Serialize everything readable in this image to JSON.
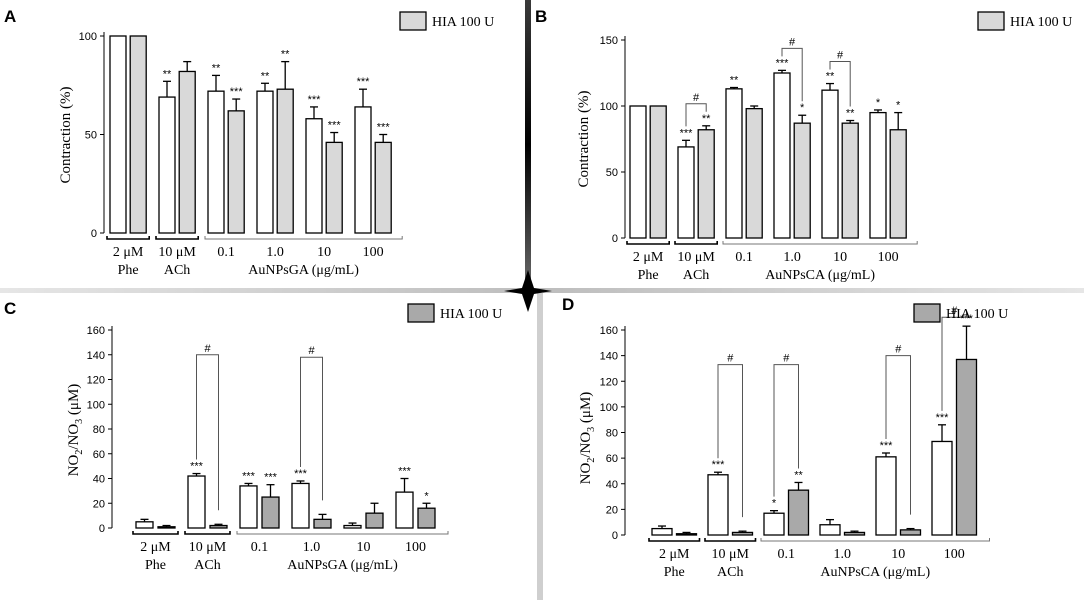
{
  "figure": {
    "divider_colors": {
      "horizontal": "#bdbdbd",
      "vertical": "#1c1c1c"
    },
    "bar_colors": {
      "control": "#ffffff",
      "hia": "#d9d9d9",
      "hia_dark": "#a9a9a9"
    }
  },
  "chart_data": [
    {
      "id": "A",
      "type": "bar",
      "letter": "A",
      "ylabel": "Contraction (%)",
      "ylim": [
        0,
        100
      ],
      "yticks": [
        0,
        50,
        100
      ],
      "legend": "HIA 100 U",
      "hia_fill": "#d9d9d9",
      "bars": [
        {
          "group": 0,
          "hia": false,
          "value": 100,
          "err": 0,
          "sig": ""
        },
        {
          "group": 0,
          "hia": true,
          "value": 100,
          "err": 0,
          "sig": ""
        },
        {
          "group": 1,
          "hia": false,
          "value": 69,
          "err": 8,
          "sig": "**"
        },
        {
          "group": 1,
          "hia": true,
          "value": 82,
          "err": 5,
          "sig": ""
        },
        {
          "group": 2,
          "hia": false,
          "value": 72,
          "err": 8,
          "sig": "**"
        },
        {
          "group": 2,
          "hia": true,
          "value": 62,
          "err": 6,
          "sig": "***"
        },
        {
          "group": 3,
          "hia": false,
          "value": 72,
          "err": 4,
          "sig": "**"
        },
        {
          "group": 3,
          "hia": true,
          "value": 73,
          "err": 14,
          "sig": "**"
        },
        {
          "group": 4,
          "hia": false,
          "value": 58,
          "err": 6,
          "sig": "***"
        },
        {
          "group": 4,
          "hia": true,
          "value": 46,
          "err": 5,
          "sig": "***"
        },
        {
          "group": 5,
          "hia": false,
          "value": 64,
          "err": 9,
          "sig": "***"
        },
        {
          "group": 5,
          "hia": true,
          "value": 46,
          "err": 4,
          "sig": "***"
        }
      ],
      "hashes": [],
      "concentrations": [
        "0.1",
        "1.0",
        "10",
        "100"
      ],
      "group_labels": [
        {
          "line1": "2 μM",
          "line2": "Phe"
        },
        {
          "line1": "10 μM",
          "line2": "ACh"
        }
      ],
      "compound_label": "AuNPsGA (μg/mL)"
    },
    {
      "id": "B",
      "type": "bar",
      "letter": "B",
      "ylabel": "Contraction (%)",
      "ylim": [
        0,
        150
      ],
      "yticks": [
        0,
        50,
        100,
        150
      ],
      "legend": "HIA 100 U",
      "hia_fill": "#d9d9d9",
      "bars": [
        {
          "group": 0,
          "hia": false,
          "value": 100,
          "err": 0,
          "sig": ""
        },
        {
          "group": 0,
          "hia": true,
          "value": 100,
          "err": 0,
          "sig": ""
        },
        {
          "group": 1,
          "hia": false,
          "value": 69,
          "err": 5,
          "sig": "***"
        },
        {
          "group": 1,
          "hia": true,
          "value": 82,
          "err": 3,
          "sig": "**"
        },
        {
          "group": 2,
          "hia": false,
          "value": 113,
          "err": 1,
          "sig": "**"
        },
        {
          "group": 2,
          "hia": true,
          "value": 98,
          "err": 2,
          "sig": ""
        },
        {
          "group": 3,
          "hia": false,
          "value": 125,
          "err": 2,
          "sig": "***"
        },
        {
          "group": 3,
          "hia": true,
          "value": 87,
          "err": 6,
          "sig": "*"
        },
        {
          "group": 4,
          "hia": false,
          "value": 112,
          "err": 5,
          "sig": "**"
        },
        {
          "group": 4,
          "hia": true,
          "value": 87,
          "err": 2,
          "sig": "**"
        },
        {
          "group": 5,
          "hia": false,
          "value": 95,
          "err": 2,
          "sig": "*"
        },
        {
          "group": 5,
          "hia": true,
          "value": 82,
          "err": 13,
          "sig": "*"
        }
      ],
      "hashes": [
        {
          "from": 2,
          "to": 3,
          "label": "#"
        },
        {
          "from": 6,
          "to": 7,
          "label": "#"
        },
        {
          "from": 8,
          "to": 9,
          "label": "#"
        }
      ],
      "concentrations": [
        "0.1",
        "1.0",
        "10",
        "100"
      ],
      "group_labels": [
        {
          "line1": "2 μM",
          "line2": "Phe"
        },
        {
          "line1": "10 μM",
          "line2": "ACh"
        }
      ],
      "compound_label": "AuNPsCA (μg/mL)"
    },
    {
      "id": "C",
      "type": "bar",
      "letter": "C",
      "ylabel_main": "NO",
      "ylabel_sub1": "2",
      "ylabel_mid": "/NO",
      "ylabel_sub2": "3",
      "ylabel_end": " (μM)",
      "ylim": [
        0,
        160
      ],
      "yticks": [
        0,
        20,
        40,
        60,
        80,
        100,
        120,
        140,
        160
      ],
      "legend": "HIA 100 U",
      "hia_fill": "#a9a9a9",
      "bars": [
        {
          "group": 0,
          "hia": false,
          "value": 5,
          "err": 2,
          "sig": ""
        },
        {
          "group": 0,
          "hia": true,
          "value": 1,
          "err": 1,
          "sig": ""
        },
        {
          "group": 1,
          "hia": false,
          "value": 42,
          "err": 2,
          "sig": "***"
        },
        {
          "group": 1,
          "hia": true,
          "value": 2,
          "err": 1,
          "sig": ""
        },
        {
          "group": 2,
          "hia": false,
          "value": 34,
          "err": 2,
          "sig": "***"
        },
        {
          "group": 2,
          "hia": true,
          "value": 25,
          "err": 10,
          "sig": "***"
        },
        {
          "group": 3,
          "hia": false,
          "value": 36,
          "err": 2,
          "sig": "***"
        },
        {
          "group": 3,
          "hia": true,
          "value": 7,
          "err": 4,
          "sig": ""
        },
        {
          "group": 4,
          "hia": false,
          "value": 2,
          "err": 2,
          "sig": ""
        },
        {
          "group": 4,
          "hia": true,
          "value": 12,
          "err": 8,
          "sig": ""
        },
        {
          "group": 5,
          "hia": false,
          "value": 29,
          "err": 11,
          "sig": "***"
        },
        {
          "group": 5,
          "hia": true,
          "value": 16,
          "err": 4,
          "sig": "*"
        }
      ],
      "hashes": [
        {
          "from": 2,
          "to": 3,
          "label": "#",
          "level": 140
        },
        {
          "from": 6,
          "to": 7,
          "label": "#",
          "level": 138
        }
      ],
      "concentrations": [
        "0.1",
        "1.0",
        "10",
        "100"
      ],
      "group_labels": [
        {
          "line1": "2 μM",
          "line2": "Phe"
        },
        {
          "line1": "10 μM",
          "line2": "ACh"
        }
      ],
      "compound_label": "AuNPsGA (μg/mL)"
    },
    {
      "id": "D",
      "type": "bar",
      "letter": "D",
      "ylabel_main": "NO",
      "ylabel_sub1": "2",
      "ylabel_mid": "/NO",
      "ylabel_sub2": "3",
      "ylabel_end": " (μM)",
      "ylim": [
        0,
        160
      ],
      "yticks": [
        0,
        20,
        40,
        60,
        80,
        100,
        120,
        140,
        160
      ],
      "legend": "HIA 100 U",
      "hia_fill": "#a9a9a9",
      "bars": [
        {
          "group": 0,
          "hia": false,
          "value": 5,
          "err": 2,
          "sig": ""
        },
        {
          "group": 0,
          "hia": true,
          "value": 1,
          "err": 1,
          "sig": ""
        },
        {
          "group": 1,
          "hia": false,
          "value": 47,
          "err": 2,
          "sig": "***"
        },
        {
          "group": 1,
          "hia": true,
          "value": 2,
          "err": 1,
          "sig": ""
        },
        {
          "group": 2,
          "hia": false,
          "value": 17,
          "err": 2,
          "sig": "*"
        },
        {
          "group": 2,
          "hia": true,
          "value": 35,
          "err": 6,
          "sig": "**"
        },
        {
          "group": 3,
          "hia": false,
          "value": 8,
          "err": 4,
          "sig": ""
        },
        {
          "group": 3,
          "hia": true,
          "value": 2,
          "err": 1,
          "sig": ""
        },
        {
          "group": 4,
          "hia": false,
          "value": 61,
          "err": 3,
          "sig": "***"
        },
        {
          "group": 4,
          "hia": true,
          "value": 4,
          "err": 1,
          "sig": ""
        },
        {
          "group": 5,
          "hia": false,
          "value": 73,
          "err": 13,
          "sig": "***"
        },
        {
          "group": 5,
          "hia": true,
          "value": 137,
          "err": 26,
          "sig": "***"
        }
      ],
      "hashes": [
        {
          "from": 2,
          "to": 3,
          "label": "#",
          "level": 133
        },
        {
          "from": 4,
          "to": 5,
          "label": "#",
          "level": 133
        },
        {
          "from": 8,
          "to": 9,
          "label": "#",
          "level": 140
        },
        {
          "from": 10,
          "to": 11,
          "label": "#",
          "level": 170
        }
      ],
      "concentrations": [
        "0.1",
        "1.0",
        "10",
        "100"
      ],
      "group_labels": [
        {
          "line1": "2 μM",
          "line2": "Phe"
        },
        {
          "line1": "10 μM",
          "line2": "ACh"
        }
      ],
      "compound_label": "AuNPsCA (μg/mL)"
    }
  ]
}
